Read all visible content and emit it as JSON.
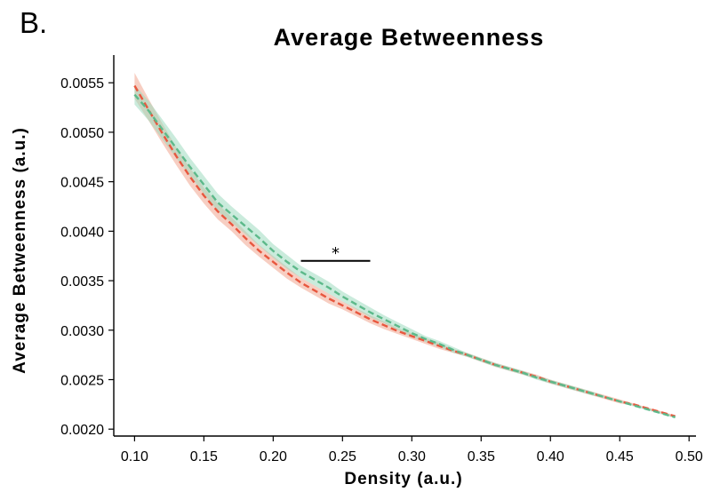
{
  "panel_label": "B.",
  "colors": {
    "red": "#e8573e",
    "red_band": "#f0a68f",
    "green": "#5db98a",
    "green_band": "#9fdabf"
  },
  "chart_data": {
    "type": "line",
    "title": "Average Betweenness",
    "xlabel": "Density (a.u.)",
    "ylabel": "Average Betweenness (a.u.)",
    "xlim": [
      0.085,
      0.505
    ],
    "ylim": [
      0.00193,
      0.00578
    ],
    "x_ticks": [
      0.1,
      0.15,
      0.2,
      0.25,
      0.3,
      0.35,
      0.4,
      0.45,
      0.5
    ],
    "x_tick_labels": [
      "0.10",
      "0.15",
      "0.20",
      "0.25",
      "0.30",
      "0.35",
      "0.40",
      "0.45",
      "0.50"
    ],
    "y_ticks": [
      0.002,
      0.0025,
      0.003,
      0.0035,
      0.004,
      0.0045,
      0.005,
      0.0055
    ],
    "y_tick_labels": [
      "0.0020",
      "0.0025",
      "0.0030",
      "0.0035",
      "0.0040",
      "0.0045",
      "0.0050",
      "0.0055"
    ],
    "grid": false,
    "line_style": "dashed",
    "series": [
      {
        "color": "#e8573e",
        "band_color": "#f0a68f",
        "x": [
          0.1,
          0.11,
          0.12,
          0.13,
          0.14,
          0.15,
          0.16,
          0.17,
          0.18,
          0.19,
          0.2,
          0.21,
          0.22,
          0.23,
          0.24,
          0.25,
          0.26,
          0.27,
          0.28,
          0.29,
          0.3,
          0.31,
          0.32,
          0.33,
          0.34,
          0.35,
          0.36,
          0.37,
          0.38,
          0.39,
          0.4,
          0.41,
          0.42,
          0.43,
          0.44,
          0.45,
          0.46,
          0.47,
          0.48,
          0.49
        ],
        "y": [
          0.00547,
          0.00523,
          0.00499,
          0.00476,
          0.00455,
          0.00436,
          0.0042,
          0.00407,
          0.00393,
          0.0038,
          0.00369,
          0.00358,
          0.00348,
          0.0034,
          0.00332,
          0.00325,
          0.00318,
          0.00311,
          0.00305,
          0.00299,
          0.00294,
          0.00289,
          0.00284,
          0.00279,
          0.00275,
          0.0027,
          0.00265,
          0.00261,
          0.00257,
          0.00253,
          0.00248,
          0.00244,
          0.0024,
          0.00236,
          0.00232,
          0.00228,
          0.00225,
          0.00221,
          0.00217,
          0.00213
        ],
        "err": [
          0.00013,
          0.00011,
          0.0001,
          9e-05,
          9e-05,
          8e-05,
          8e-05,
          7e-05,
          7e-05,
          6e-05,
          6e-05,
          6e-05,
          5e-05,
          5e-05,
          5e-05,
          4e-05,
          4e-05,
          4e-05,
          4e-05,
          3e-05,
          3e-05,
          3e-05,
          3e-05,
          2e-05,
          2e-05,
          2e-05,
          2e-05,
          2e-05,
          2e-05,
          2e-05,
          2e-05,
          2e-05,
          2e-05,
          2e-05,
          2e-05,
          2e-05,
          1e-05,
          1e-05,
          1e-05,
          1e-05
        ]
      },
      {
        "color": "#5db98a",
        "band_color": "#9fdabf",
        "x": [
          0.1,
          0.11,
          0.12,
          0.13,
          0.14,
          0.15,
          0.16,
          0.17,
          0.18,
          0.19,
          0.2,
          0.21,
          0.22,
          0.23,
          0.24,
          0.25,
          0.26,
          0.27,
          0.28,
          0.29,
          0.3,
          0.31,
          0.32,
          0.33,
          0.34,
          0.35,
          0.36,
          0.37,
          0.38,
          0.39,
          0.4,
          0.41,
          0.42,
          0.43,
          0.44,
          0.45,
          0.46,
          0.47,
          0.48,
          0.49
        ],
        "y": [
          0.00538,
          0.00522,
          0.00503,
          0.00484,
          0.00465,
          0.00447,
          0.00429,
          0.00417,
          0.00405,
          0.00393,
          0.0038,
          0.00369,
          0.00359,
          0.00351,
          0.00343,
          0.00334,
          0.00326,
          0.00318,
          0.00311,
          0.00304,
          0.00297,
          0.00291,
          0.00286,
          0.0028,
          0.00275,
          0.0027,
          0.00265,
          0.00261,
          0.00257,
          0.00252,
          0.00248,
          0.00244,
          0.0024,
          0.00236,
          0.00232,
          0.00228,
          0.00224,
          0.0022,
          0.00216,
          0.00212
        ],
        "err": [
          0.0001,
          0.0001,
          0.0001,
          0.0001,
          9e-05,
          9e-05,
          9e-05,
          8e-05,
          8e-05,
          8e-05,
          7e-05,
          7e-05,
          6e-05,
          6e-05,
          6e-05,
          5e-05,
          5e-05,
          5e-05,
          4e-05,
          4e-05,
          4e-05,
          3e-05,
          3e-05,
          3e-05,
          2e-05,
          2e-05,
          2e-05,
          2e-05,
          2e-05,
          2e-05,
          2e-05,
          2e-05,
          2e-05,
          2e-05,
          1e-05,
          1e-05,
          1e-05,
          1e-05,
          1e-05,
          1e-05
        ]
      }
    ],
    "significance": {
      "label": "*",
      "x_start": 0.22,
      "x_end": 0.27,
      "y": 0.0037
    }
  }
}
